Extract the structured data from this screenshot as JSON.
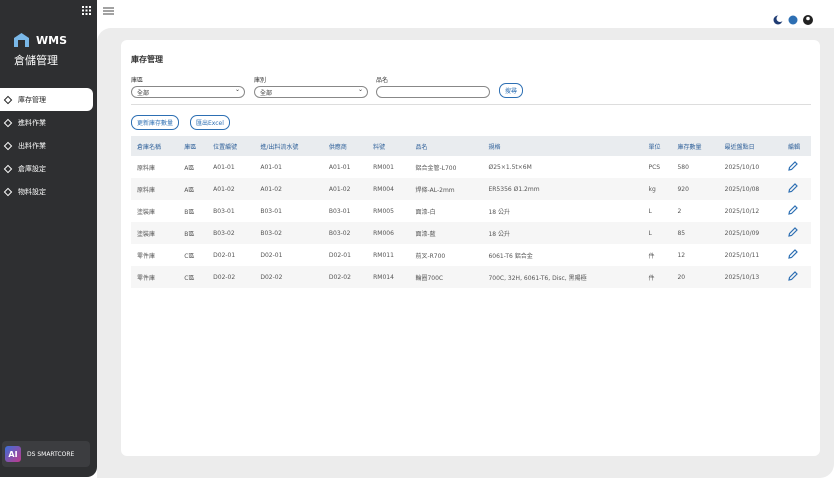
{
  "sidebar": {
    "brand": "WMS",
    "subtitle": "倉儲管理",
    "menu": [
      "庫存管理",
      "進料作業",
      "出料作業",
      "倉庫設定",
      "物料設定"
    ],
    "footer_logo": "AI",
    "footer_text": "DS SMARTCORE"
  },
  "main": {
    "title": "庫存管理",
    "filters": [
      {
        "label": "庫區",
        "value": "全部"
      },
      {
        "label": "庫別",
        "value": "全部"
      },
      {
        "label": "品名"
      }
    ],
    "search_button": "搜尋",
    "actions": [
      "更新庫存數量",
      "匯出Excel"
    ],
    "table": {
      "headers": [
        "倉庫名稱",
        "庫區",
        "位置編號",
        "進/出料流水號",
        "供應商",
        "料號",
        "品名",
        "規格",
        "單位",
        "庫存數量",
        "最近盤點日",
        "編輯"
      ],
      "rows": [
        [
          "原料庫",
          "A區",
          "A01-01",
          "A01-01",
          "A01-01",
          "RM001",
          "鋁合金管-L700",
          "Ø25×1.5t×6M",
          "PCS",
          "580",
          "2025/10/10"
        ],
        [
          "原料庫",
          "A區",
          "A01-02",
          "A01-02",
          "A01-02",
          "RM004",
          "焊條-AL-2mm",
          "ER5356 Ø1.2mm",
          "kg",
          "920",
          "2025/10/08"
        ],
        [
          "塗裝庫",
          "B區",
          "B03-01",
          "B03-01",
          "B03-01",
          "RM005",
          "面漆-白",
          "18 公升",
          "L",
          "2",
          "2025/10/12"
        ],
        [
          "塗裝庫",
          "B區",
          "B03-02",
          "B03-02",
          "B03-02",
          "RM006",
          "面漆-藍",
          "18 公升",
          "L",
          "85",
          "2025/10/09"
        ],
        [
          "零件庫",
          "C區",
          "D02-01",
          "D02-01",
          "D02-01",
          "RM011",
          "前叉-R700",
          "6061-T6 鋁合金",
          "件",
          "12",
          "2025/10/11"
        ],
        [
          "零件庫",
          "C區",
          "D02-02",
          "D02-02",
          "D02-02",
          "RM014",
          "輪圈700C",
          "700C, 32H, 6061-T6, Disc, 黑陽極",
          "件",
          "20",
          "2025/10/13"
        ]
      ]
    }
  }
}
